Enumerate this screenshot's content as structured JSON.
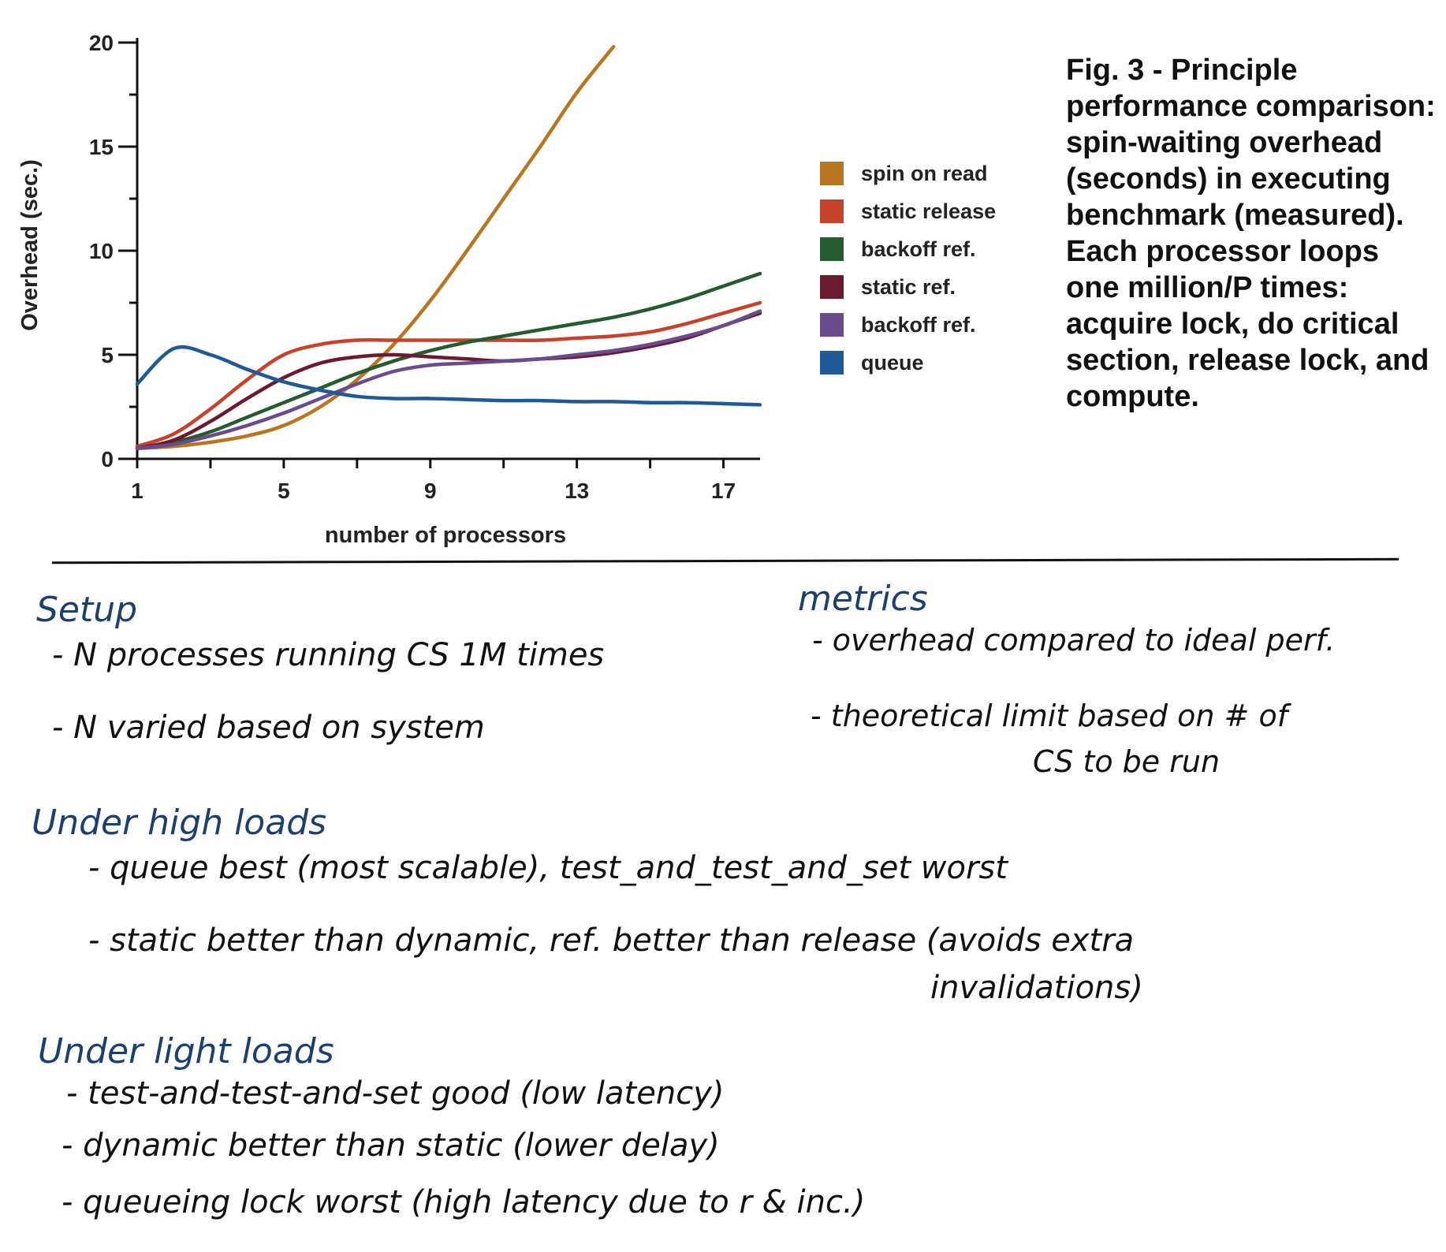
{
  "chart_data": {
    "type": "line",
    "xlabel": "number of processors",
    "ylabel": "Overhead (sec.)",
    "xlim": [
      1,
      18
    ],
    "ylim": [
      0,
      20
    ],
    "x_ticks": [
      1,
      5,
      9,
      13,
      17
    ],
    "y_ticks": [
      0,
      5,
      10,
      15,
      20
    ],
    "legend_position": "right",
    "grid": false,
    "series": [
      {
        "name": "spin on read",
        "color": "#b8761f",
        "x": [
          1,
          2,
          3,
          4,
          5,
          6,
          7,
          8,
          9,
          10,
          11,
          12,
          13,
          14
        ],
        "y": [
          0.5,
          0.6,
          0.8,
          1.1,
          1.6,
          2.5,
          3.8,
          5.5,
          7.6,
          10.0,
          12.5,
          15.0,
          17.6,
          19.8
        ]
      },
      {
        "name": "static release",
        "color": "#c7422a",
        "x": [
          1,
          2,
          3,
          4,
          5,
          6,
          7,
          8,
          9,
          10,
          11,
          12,
          13,
          14,
          15,
          16,
          17,
          18
        ],
        "y": [
          0.6,
          1.2,
          2.4,
          3.8,
          5.0,
          5.5,
          5.7,
          5.7,
          5.7,
          5.7,
          5.7,
          5.7,
          5.8,
          5.9,
          6.1,
          6.5,
          7.0,
          7.5
        ]
      },
      {
        "name": "backoff ref.",
        "color": "#245c2f",
        "x": [
          1,
          2,
          3,
          4,
          5,
          6,
          7,
          8,
          9,
          10,
          11,
          12,
          13,
          14,
          15,
          16,
          17,
          18
        ],
        "y": [
          0.5,
          0.8,
          1.3,
          2.0,
          2.7,
          3.4,
          4.1,
          4.7,
          5.2,
          5.6,
          5.9,
          6.2,
          6.5,
          6.8,
          7.2,
          7.7,
          8.3,
          8.9
        ]
      },
      {
        "name": "static ref.",
        "color": "#6b1a30",
        "x": [
          1,
          2,
          3,
          4,
          5,
          6,
          7,
          8,
          9,
          10,
          11,
          12,
          13,
          14,
          15,
          16,
          17,
          18
        ],
        "y": [
          0.5,
          0.9,
          1.8,
          2.9,
          3.9,
          4.6,
          4.9,
          5.0,
          4.9,
          4.8,
          4.7,
          4.8,
          4.9,
          5.1,
          5.4,
          5.8,
          6.4,
          7.0
        ]
      },
      {
        "name": "backoff ref.",
        "color": "#6a4c8c",
        "x": [
          1,
          2,
          3,
          4,
          5,
          6,
          7,
          8,
          9,
          10,
          11,
          12,
          13,
          14,
          15,
          16,
          17,
          18
        ],
        "y": [
          0.5,
          0.7,
          1.1,
          1.6,
          2.2,
          2.9,
          3.6,
          4.2,
          4.5,
          4.6,
          4.7,
          4.8,
          5.0,
          5.2,
          5.5,
          5.9,
          6.4,
          7.1
        ]
      },
      {
        "name": "queue",
        "color": "#1f5a96",
        "x": [
          1,
          2,
          3,
          4,
          5,
          6,
          7,
          8,
          9,
          10,
          11,
          12,
          13,
          14,
          15,
          16,
          17,
          18
        ],
        "y": [
          3.6,
          5.3,
          5.0,
          4.3,
          3.7,
          3.3,
          3.0,
          2.9,
          2.9,
          2.85,
          2.8,
          2.8,
          2.75,
          2.75,
          2.7,
          2.7,
          2.65,
          2.6
        ]
      }
    ]
  },
  "caption": "Fig. 3 - Principle performance comparison: spin-waiting overhead (seconds) in executing benchmark (measured). Each processor loops one million/P times: acquire lock, do critical section, release lock, and compute.",
  "notes": {
    "setup": {
      "heading": "Setup",
      "lines": [
        "- N processes running CS 1M times",
        "- N varied based on system"
      ]
    },
    "metrics": {
      "heading": "metrics",
      "lines": [
        "- overhead compared to ideal perf.",
        "- theoretical limit based on # of",
        "CS to be run"
      ]
    },
    "high": {
      "heading": "Under high loads",
      "lines": [
        "- queue best (most scalable), test_and_test_and_set worst",
        "- static better than dynamic, ref. better than release (avoids extra",
        "invalidations)"
      ]
    },
    "light": {
      "heading": "Under light loads",
      "lines": [
        "- test-and-test-and-set good (low latency)",
        "- dynamic better than static (lower delay)",
        "- queueing lock worst (high latency due to r & inc.)"
      ]
    }
  }
}
